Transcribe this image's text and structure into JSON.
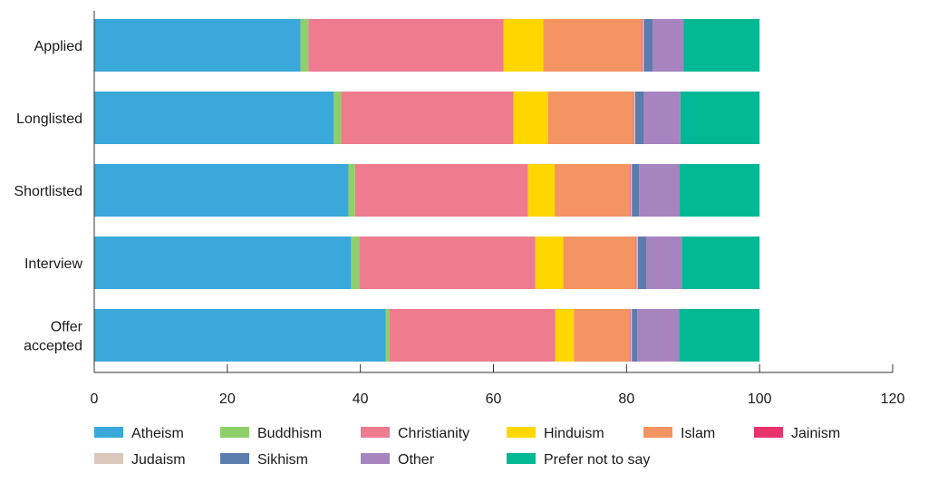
{
  "chart_data": {
    "type": "bar",
    "orientation": "horizontal",
    "stacked": true,
    "title": "",
    "xlabel": "",
    "ylabel": "",
    "xlim": [
      0,
      120
    ],
    "x_ticks": [
      0,
      20,
      40,
      60,
      80,
      100,
      120
    ],
    "grid": false,
    "legend_position": "bottom",
    "categories": [
      [
        "Applied"
      ],
      [
        "Longlisted"
      ],
      [
        "Shortlisted"
      ],
      [
        "Interview"
      ],
      [
        "Offer",
        "accepted"
      ]
    ],
    "series": [
      {
        "name": "Atheism",
        "color": "#3aa8db",
        "values": [
          31.0,
          36.0,
          38.2,
          38.6,
          43.8
        ]
      },
      {
        "name": "Buddhism",
        "color": "#8fcf6a",
        "values": [
          1.2,
          1.1,
          1.0,
          1.2,
          0.6
        ]
      },
      {
        "name": "Christianity",
        "color": "#ef7b8f",
        "values": [
          29.3,
          25.9,
          26.0,
          26.5,
          24.9
        ]
      },
      {
        "name": "Hinduism",
        "color": "#ffd700",
        "values": [
          6.0,
          5.2,
          4.0,
          4.2,
          2.8
        ]
      },
      {
        "name": "Islam",
        "color": "#f49462",
        "values": [
          14.8,
          12.8,
          11.3,
          10.9,
          8.4
        ]
      },
      {
        "name": "Jainism",
        "color": "#e8336d",
        "values": [
          0.1,
          0.1,
          0.1,
          0.1,
          0.1
        ]
      },
      {
        "name": "Judaism",
        "color": "#d9c8bc",
        "values": [
          0.2,
          0.2,
          0.2,
          0.2,
          0.2
        ]
      },
      {
        "name": "Sikhism",
        "color": "#5b7cac",
        "values": [
          1.3,
          1.3,
          1.1,
          1.3,
          0.8
        ]
      },
      {
        "name": "Other",
        "color": "#a784bf",
        "values": [
          4.7,
          5.5,
          6.1,
          5.3,
          6.3
        ]
      },
      {
        "name": "Prefer not to say",
        "color": "#00b894",
        "values": [
          11.4,
          11.9,
          12.0,
          11.7,
          12.1
        ]
      }
    ]
  }
}
